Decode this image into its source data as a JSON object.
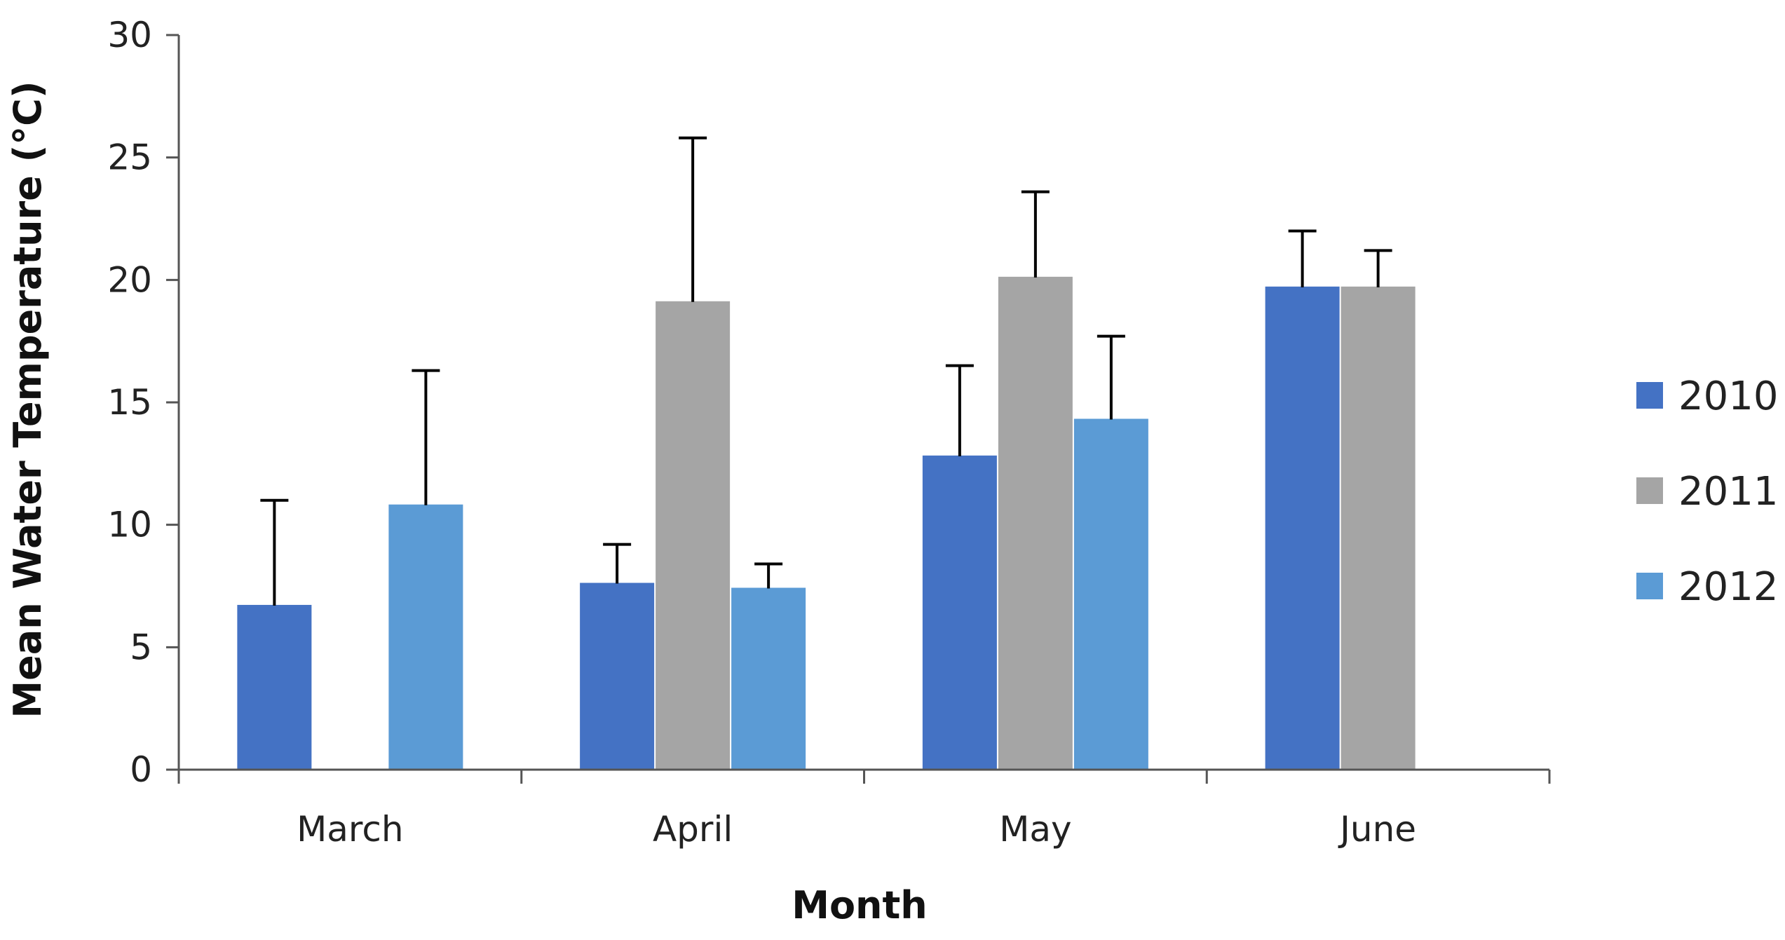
{
  "chart_data": {
    "type": "bar",
    "title": "",
    "xlabel": "Month",
    "ylabel": "Mean Water Temperature (°C)",
    "categories": [
      "March",
      "April",
      "May",
      "June"
    ],
    "ylim": [
      0,
      30
    ],
    "yticks": [
      0,
      5,
      10,
      15,
      20,
      25,
      30
    ],
    "grid": false,
    "legend_position": "right",
    "series": [
      {
        "name": "2010",
        "color": "#4472C4",
        "values": [
          6.7,
          7.6,
          12.8,
          19.7
        ],
        "errors": [
          4.3,
          1.6,
          3.7,
          2.3
        ]
      },
      {
        "name": "2011",
        "color": "#A5A5A5",
        "values": [
          null,
          19.1,
          20.1,
          19.7
        ],
        "errors": [
          null,
          6.7,
          3.5,
          1.5
        ]
      },
      {
        "name": "2012",
        "color": "#5B9BD5",
        "values": [
          10.8,
          7.4,
          14.3,
          null
        ],
        "errors": [
          5.5,
          1.0,
          3.4,
          null
        ]
      }
    ]
  }
}
